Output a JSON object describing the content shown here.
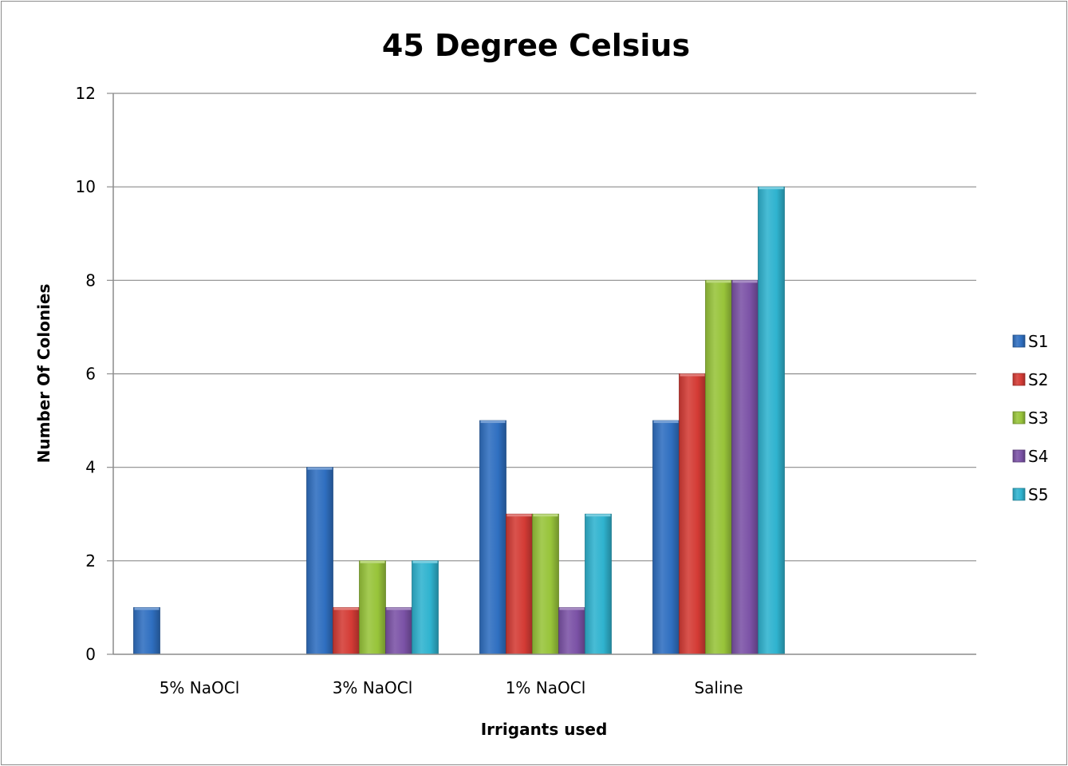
{
  "chart_data": {
    "type": "bar",
    "title": "45 Degree Celsius",
    "xlabel": "Irrigants used",
    "ylabel": "Number Of Colonies",
    "categories": [
      "5% NaOCl",
      "3% NaOCl",
      "1% NaOCl",
      "Saline"
    ],
    "series": [
      {
        "name": "S1",
        "color": "#2f6fc0",
        "values": [
          1,
          4,
          5,
          5
        ]
      },
      {
        "name": "S2",
        "color": "#d43b35",
        "values": [
          0,
          1,
          3,
          6
        ]
      },
      {
        "name": "S3",
        "color": "#98c43a",
        "values": [
          0,
          2,
          3,
          8
        ]
      },
      {
        "name": "S4",
        "color": "#7b52a6",
        "values": [
          0,
          1,
          1,
          8
        ]
      },
      {
        "name": "S5",
        "color": "#2fb3cf",
        "values": [
          0,
          2,
          3,
          10
        ]
      }
    ],
    "ylim": [
      0,
      12
    ],
    "yticks": [
      0,
      2,
      4,
      6,
      8,
      10,
      12
    ],
    "grid": true,
    "legend_position": "right"
  }
}
